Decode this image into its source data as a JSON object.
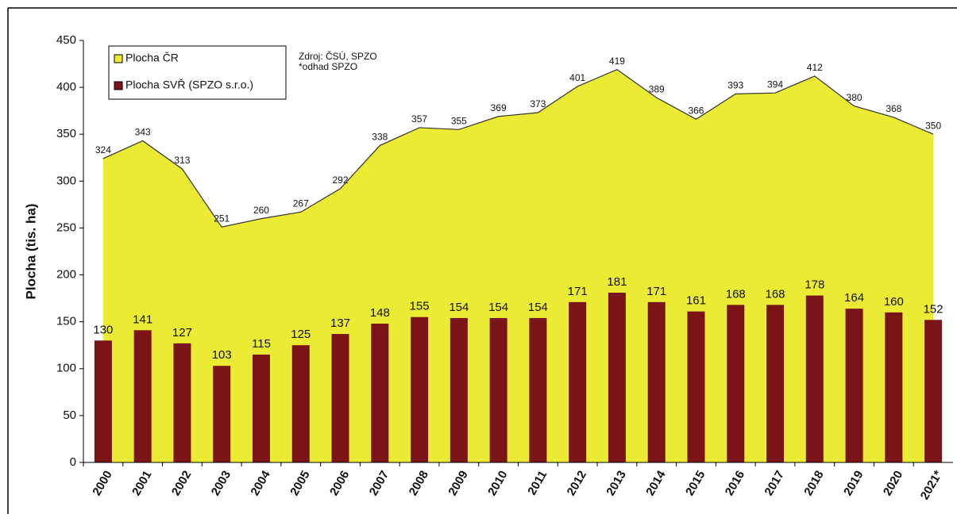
{
  "chart_data": {
    "type": "combo",
    "categories": [
      "2000",
      "2001",
      "2002",
      "2003",
      "2004",
      "2005",
      "2006",
      "2007",
      "2008",
      "2009",
      "2010",
      "2011",
      "2012",
      "2013",
      "2014",
      "2015",
      "2016",
      "2017",
      "2018",
      "2019",
      "2020",
      "2021*"
    ],
    "y_label": "Plocha (tis. ha)",
    "annotations": [
      "Zdroj: ČSÚ, SPZO",
      "*odhad  SPZO"
    ],
    "ylim": [
      0,
      450
    ],
    "yticks": [
      0,
      50,
      100,
      150,
      200,
      250,
      300,
      350,
      400,
      450
    ],
    "legend": "top-left",
    "series": [
      {
        "name": "Plocha ČR",
        "type": "area",
        "color": "#ebeb33",
        "values": [
          324,
          343,
          313,
          251,
          260,
          267,
          292,
          338,
          357,
          355,
          369,
          373,
          401,
          419,
          389,
          366,
          393,
          394,
          412,
          380,
          368,
          350
        ]
      },
      {
        "name": "Plocha SVŘ (SPZO s.r.o.)",
        "type": "bar",
        "color": "#7b1416",
        "values": [
          130,
          141,
          127,
          103,
          115,
          125,
          137,
          148,
          155,
          154,
          154,
          154,
          171,
          181,
          171,
          161,
          168,
          168,
          178,
          164,
          160,
          152
        ]
      }
    ]
  }
}
